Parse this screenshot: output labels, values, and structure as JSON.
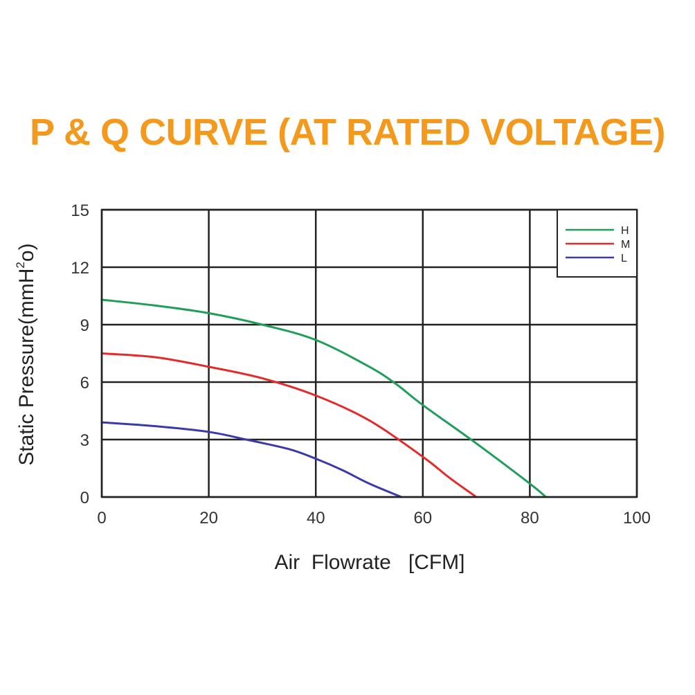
{
  "chart_data": {
    "type": "line",
    "title": "P & Q CURVE (AT RATED VOLTAGE)",
    "xlabel": "Air  Flowrate   [CFM]",
    "ylabel_main": "Static Pressure(mmH",
    "ylabel_sup": "2",
    "ylabel_tail": "o)",
    "xlim": [
      0,
      100
    ],
    "ylim": [
      0,
      15
    ],
    "xticks": [
      0,
      20,
      40,
      60,
      80,
      100
    ],
    "yticks": [
      0,
      3,
      6,
      9,
      12,
      15
    ],
    "grid": true,
    "legend_position": "top-right",
    "series": [
      {
        "name": "H",
        "color": "#1f9e5a",
        "x": [
          0,
          10,
          20,
          30,
          40,
          50,
          55,
          60,
          70,
          80,
          83
        ],
        "y": [
          10.3,
          10.0,
          9.6,
          9.0,
          8.2,
          6.8,
          5.9,
          4.8,
          2.8,
          0.7,
          0
        ]
      },
      {
        "name": "M",
        "color": "#e32b2b",
        "x": [
          0,
          10,
          20,
          30,
          40,
          50,
          60,
          65,
          70
        ],
        "y": [
          7.5,
          7.3,
          6.8,
          6.2,
          5.3,
          4.0,
          2.1,
          1.0,
          0
        ]
      },
      {
        "name": "L",
        "color": "#3a3aa8",
        "x": [
          0,
          10,
          20,
          27,
          35,
          40,
          45,
          50,
          56
        ],
        "y": [
          3.9,
          3.7,
          3.4,
          3.0,
          2.5,
          2.0,
          1.4,
          0.7,
          0
        ]
      }
    ]
  }
}
